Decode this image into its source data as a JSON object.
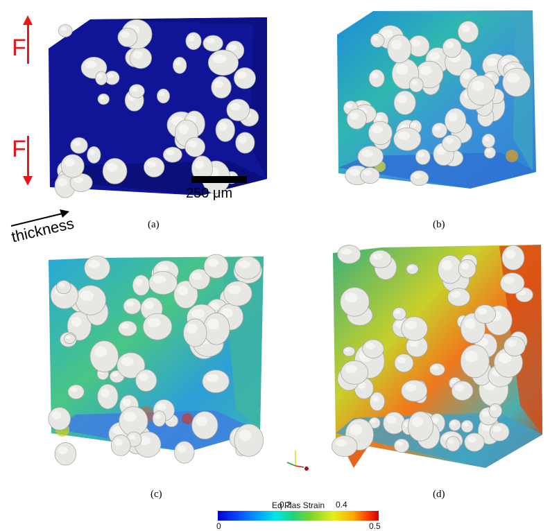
{
  "captions": [
    "(a)",
    "(b)",
    "(c)",
    "(d)"
  ],
  "force_label": "F",
  "scale_label": "250 μm",
  "thickness_label": "thickness",
  "colorbar": {
    "title": "Eq Plas Strain",
    "ticks_top": [
      "0.2",
      "0.4"
    ],
    "ticks_bottom": [
      "0",
      "0.5"
    ]
  },
  "colors": {
    "force": "#e8161b",
    "particle": "#e6e6e3",
    "matrix_initial": "#101497"
  }
}
